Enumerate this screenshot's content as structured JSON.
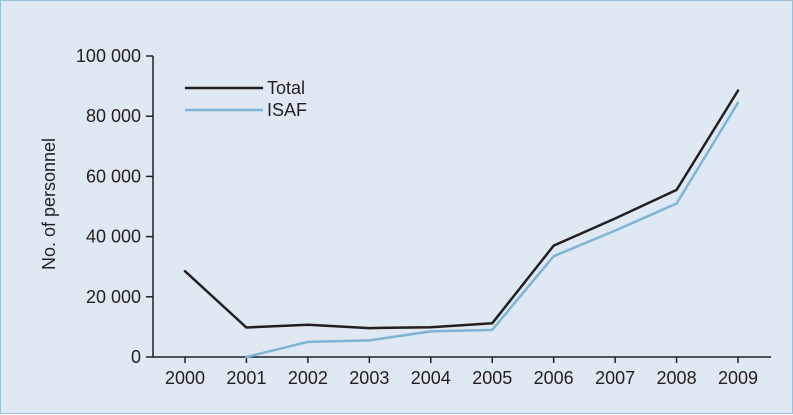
{
  "chart_data": {
    "type": "line",
    "title": "",
    "xlabel": "",
    "ylabel": "No. of personnel",
    "x": [
      "2000",
      "2001",
      "2002",
      "2003",
      "2004",
      "2005",
      "2006",
      "2007",
      "2008",
      "2009"
    ],
    "ylim": [
      0,
      100000
    ],
    "y_ticks": [
      "0",
      "20 000",
      "40 000",
      "60 000",
      "80 000",
      "100 000"
    ],
    "grid": false,
    "legend_position": "top-left",
    "series": [
      {
        "name": "Total",
        "color": "#231f20",
        "values": [
          28500,
          9800,
          10700,
          9600,
          9900,
          11200,
          37000,
          46000,
          55500,
          88500
        ]
      },
      {
        "name": "ISAF",
        "color": "#7fb4d4",
        "values": [
          null,
          0,
          5000,
          5500,
          8500,
          9000,
          33500,
          42000,
          51000,
          84500
        ]
      }
    ]
  }
}
